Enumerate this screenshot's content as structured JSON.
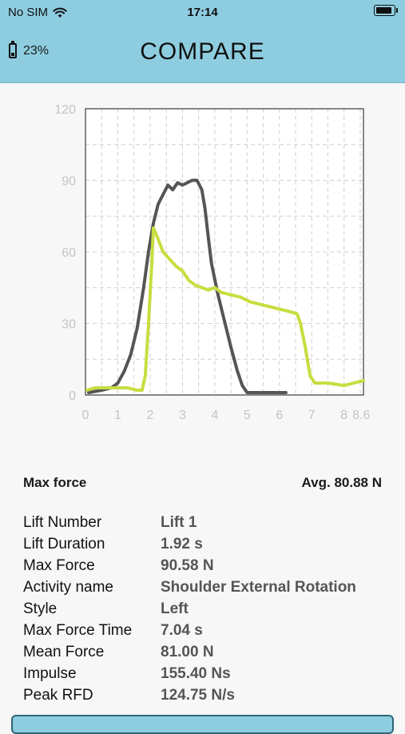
{
  "status_bar": {
    "carrier": "No SIM",
    "time": "17:14"
  },
  "header": {
    "device_battery": "23%",
    "title": "COMPARE"
  },
  "chart_data": {
    "type": "line",
    "xlim": [
      0,
      8.6
    ],
    "ylim": [
      0,
      120
    ],
    "x_ticks": [
      "0",
      "1",
      "2",
      "3",
      "4",
      "5",
      "6",
      "7",
      "8",
      "8.6"
    ],
    "y_ticks": [
      "120",
      "90",
      "60",
      "30",
      "0"
    ],
    "grid": true,
    "series": [
      {
        "color": "#555555",
        "points": [
          [
            0.1,
            1
          ],
          [
            0.5,
            2
          ],
          [
            0.8,
            3
          ],
          [
            1.0,
            5
          ],
          [
            1.2,
            10
          ],
          [
            1.4,
            17
          ],
          [
            1.6,
            28
          ],
          [
            1.8,
            45
          ],
          [
            1.95,
            60
          ],
          [
            2.1,
            72
          ],
          [
            2.25,
            80
          ],
          [
            2.4,
            84
          ],
          [
            2.55,
            88
          ],
          [
            2.7,
            86
          ],
          [
            2.85,
            89
          ],
          [
            3.0,
            88
          ],
          [
            3.15,
            89
          ],
          [
            3.3,
            90
          ],
          [
            3.45,
            90
          ],
          [
            3.6,
            86
          ],
          [
            3.7,
            78
          ],
          [
            3.8,
            66
          ],
          [
            3.9,
            55
          ],
          [
            4.1,
            42
          ],
          [
            4.3,
            31
          ],
          [
            4.5,
            20
          ],
          [
            4.7,
            10
          ],
          [
            4.85,
            4
          ],
          [
            5.0,
            1
          ],
          [
            5.5,
            1
          ],
          [
            6.0,
            1
          ],
          [
            6.2,
            1
          ]
        ]
      },
      {
        "color": "#c8dd3f",
        "points": [
          [
            0.05,
            2
          ],
          [
            0.3,
            3
          ],
          [
            0.6,
            3
          ],
          [
            1.0,
            3
          ],
          [
            1.3,
            3
          ],
          [
            1.6,
            2
          ],
          [
            1.75,
            2
          ],
          [
            1.85,
            8
          ],
          [
            1.95,
            30
          ],
          [
            2.05,
            55
          ],
          [
            2.1,
            70
          ],
          [
            2.2,
            67
          ],
          [
            2.4,
            60
          ],
          [
            2.6,
            57
          ],
          [
            2.8,
            54
          ],
          [
            3.0,
            52
          ],
          [
            3.2,
            48
          ],
          [
            3.4,
            46
          ],
          [
            3.6,
            45
          ],
          [
            3.8,
            44
          ],
          [
            4.0,
            45
          ],
          [
            4.2,
            43
          ],
          [
            4.5,
            42
          ],
          [
            4.8,
            41
          ],
          [
            5.1,
            39
          ],
          [
            5.4,
            38
          ],
          [
            5.7,
            37
          ],
          [
            6.0,
            36
          ],
          [
            6.3,
            35
          ],
          [
            6.55,
            34
          ],
          [
            6.65,
            30
          ],
          [
            6.8,
            20
          ],
          [
            6.95,
            8
          ],
          [
            7.1,
            5
          ],
          [
            7.5,
            5
          ],
          [
            8.0,
            4
          ],
          [
            8.3,
            5
          ],
          [
            8.6,
            6
          ]
        ]
      }
    ]
  },
  "summary": {
    "label": "Max force",
    "avg": "Avg. 80.88 N"
  },
  "details": [
    {
      "label": "Lift Number",
      "value": "Lift 1"
    },
    {
      "label": "Lift Duration",
      "value": "1.92 s"
    },
    {
      "label": "Max Force",
      "value": "90.58 N"
    },
    {
      "label": "Activity name",
      "value": "Shoulder External Rotation"
    },
    {
      "label": "Style",
      "value": "Left"
    },
    {
      "label": "Max Force Time",
      "value": "7.04 s"
    },
    {
      "label": "Mean Force",
      "value": "81.00 N"
    },
    {
      "label": "Impulse",
      "value": "155.40 Ns"
    },
    {
      "label": "Peak RFD",
      "value": "124.75 N/s"
    }
  ]
}
